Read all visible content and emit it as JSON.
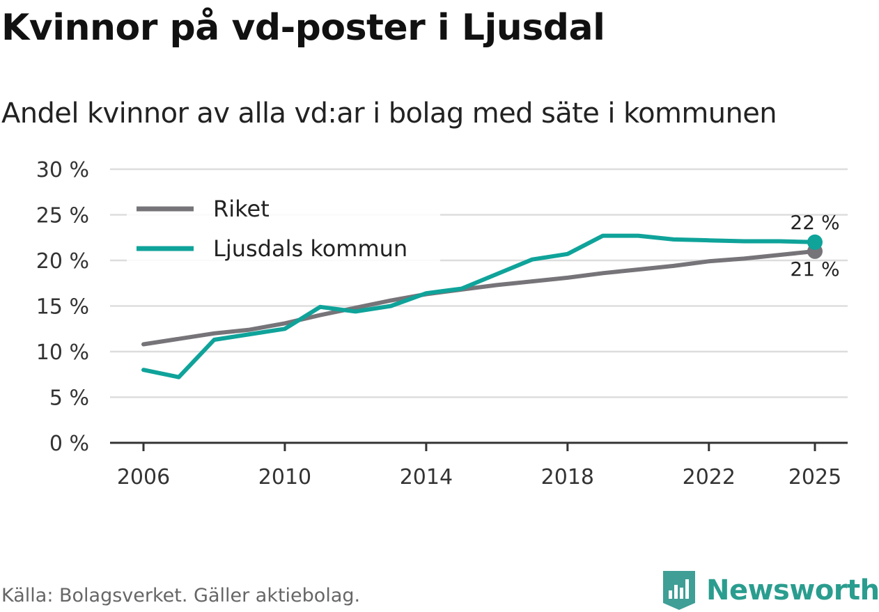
{
  "header": {
    "title": "Kvinnor på vd-poster i Ljusdal",
    "subtitle": "Andel kvinnor av alla vd:ar i bolag med säte i kommunen"
  },
  "footer": {
    "source": "Källa: Bolagsverket. Gäller aktiebolag.",
    "brand": "Newsworthy"
  },
  "colors": {
    "riket": "#767478",
    "ljusdal": "#0fa39a",
    "grid": "#dddddd",
    "axis": "#333333",
    "brand": "#2a9d8f"
  },
  "chart_data": {
    "type": "line",
    "title": "Kvinnor på vd-poster i Ljusdal",
    "subtitle": "Andel kvinnor av alla vd:ar i bolag med säte i kommunen",
    "xlabel": "",
    "ylabel": "",
    "x": [
      2006,
      2007,
      2008,
      2009,
      2010,
      2011,
      2012,
      2013,
      2014,
      2015,
      2016,
      2017,
      2018,
      2019,
      2020,
      2021,
      2022,
      2023,
      2024,
      2025
    ],
    "xlim": [
      2006,
      2025
    ],
    "ylim": [
      0,
      30
    ],
    "grid": true,
    "x_ticks": [
      2006,
      2010,
      2014,
      2018,
      2022,
      2025
    ],
    "x_tick_labels": [
      "2006",
      "2010",
      "2014",
      "2018",
      "2022",
      "2025"
    ],
    "y_ticks": [
      0,
      5,
      10,
      15,
      20,
      25,
      30
    ],
    "y_tick_labels": [
      "0 %",
      "5 %",
      "10 %",
      "15 %",
      "20 %",
      "25 %",
      "30 %"
    ],
    "legend_position": "top-left",
    "series": [
      {
        "name": "Riket",
        "color": "#767478",
        "values": [
          10.8,
          11.4,
          12.0,
          12.4,
          13.1,
          14.0,
          14.8,
          15.6,
          16.3,
          16.8,
          17.3,
          17.7,
          18.1,
          18.6,
          19.0,
          19.4,
          19.9,
          20.2,
          20.6,
          21.0
        ],
        "end_label": "21 %"
      },
      {
        "name": "Ljusdals kommun",
        "color": "#0fa39a",
        "values": [
          8.0,
          7.2,
          11.3,
          11.9,
          12.5,
          14.9,
          14.4,
          15.0,
          16.4,
          16.9,
          18.5,
          20.1,
          20.7,
          22.7,
          22.7,
          22.3,
          22.2,
          22.1,
          22.1,
          22.0
        ],
        "end_label": "22 %"
      }
    ]
  }
}
